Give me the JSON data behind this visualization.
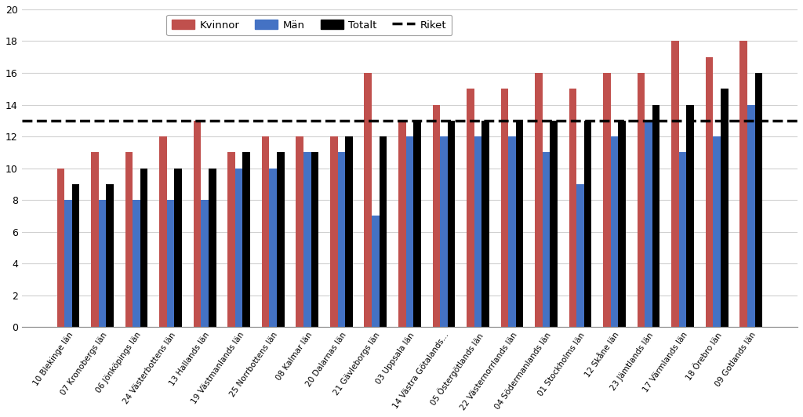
{
  "categories": [
    "10 Blekinge län",
    "07 Kronobergs län",
    "06 Jönköpings län",
    "24 Västerbottens län",
    "13 Hallands län",
    "19 Västmanlands län",
    "25 Norrbottens län",
    "08 Kalmar län",
    "20 Dalarnas län",
    "21 Gävleborgs län",
    "03 Uppsala län",
    "14 Västra Götalands...",
    "05 Östergötlands län",
    "22 Västernorrlands län",
    "04 Södermanlands län",
    "01 Stockholms län",
    "12 Skåne län",
    "23 Jämtlands län",
    "17 Värmlands län",
    "18 Örebro län",
    "09 Gotlands län"
  ],
  "kvinnor": [
    10,
    11,
    11,
    12,
    13,
    11,
    12,
    12,
    12,
    16,
    13,
    14,
    15,
    15,
    16,
    15,
    16,
    16,
    18,
    17,
    18
  ],
  "man": [
    8,
    8,
    8,
    8,
    8,
    10,
    10,
    11,
    11,
    7,
    12,
    12,
    12,
    12,
    11,
    9,
    12,
    13,
    11,
    12,
    14
  ],
  "totalt": [
    9,
    9,
    10,
    10,
    10,
    11,
    11,
    11,
    12,
    12,
    13,
    13,
    13,
    13,
    13,
    13,
    13,
    14,
    14,
    15,
    16
  ],
  "riket": 13,
  "bar_color_kvinnor": "#C0504D",
  "bar_color_man": "#4472C4",
  "bar_color_totalt": "#000000",
  "riket_color": "#000000",
  "ylim": [
    0,
    20
  ],
  "yticks": [
    0,
    2,
    4,
    6,
    8,
    10,
    12,
    14,
    16,
    18,
    20
  ],
  "background_color": "#ffffff",
  "grid_color": "#d0d0d0",
  "riket_value": 13.0
}
